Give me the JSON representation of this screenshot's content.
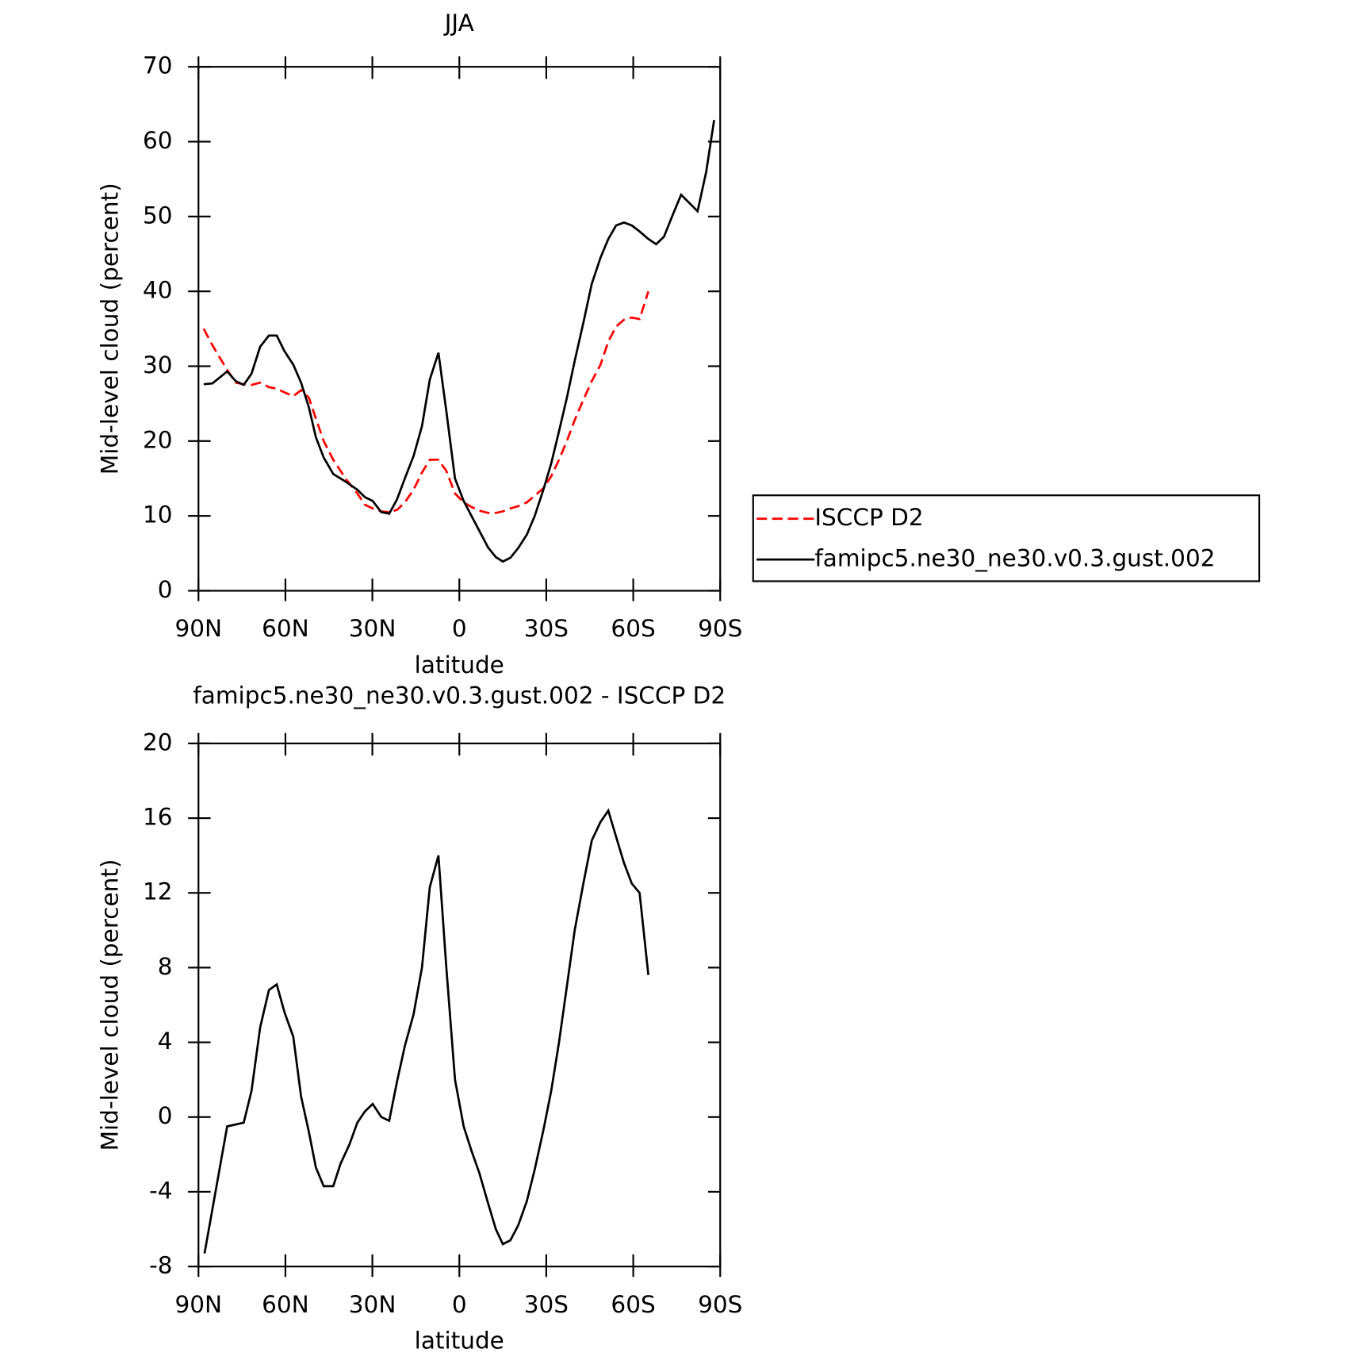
{
  "chart_data": [
    {
      "type": "line",
      "title": "JJA",
      "xlabel": "latitude",
      "ylabel": "Mid-level cloud (percent)",
      "x": [
        88.2,
        85.2,
        80.1,
        77.1,
        74.4,
        71.7,
        68.7,
        65.7,
        63.0,
        60.3,
        57.3,
        54.6,
        51.9,
        49.5,
        46.8,
        43.5,
        38.9,
        35.2,
        32.6,
        29.9,
        26.9,
        24.2,
        21.5,
        18.8,
        15.8,
        12.9,
        10.2,
        7.2,
        4.5,
        1.5,
        -1.5,
        -4.2,
        -6.9,
        -9.9,
        -12.6,
        -15.0,
        -17.6,
        -20.3,
        -23.3,
        -26.0,
        -29.0,
        -31.7,
        -34.4,
        -37.1,
        -39.8,
        -42.8,
        -45.7,
        -48.7,
        -51.4,
        -54.1,
        -56.8,
        -59.5,
        -62.2,
        -65.2,
        -67.9,
        -70.6,
        -73.6,
        -76.5,
        -82.2,
        -85.2,
        -87.9
      ],
      "series": [
        {
          "name": "ISCCP D2",
          "color": "#ff0000",
          "dash": true,
          "values": [
            35,
            32.8,
            29.5,
            27.8,
            27.6,
            27.5,
            27.8,
            27.2,
            27,
            26.5,
            26,
            26.8,
            25.8,
            23,
            20,
            17.5,
            14.8,
            13,
            11.5,
            11,
            10.6,
            10.5,
            10.8,
            11.8,
            13.5,
            15.8,
            17.5,
            17.5,
            16,
            13,
            11.8,
            11.2,
            10.7,
            10.4,
            10.4,
            10.6,
            11,
            11.3,
            11.8,
            12.7,
            13.7,
            15.3,
            17.5,
            20,
            22.8,
            25.5,
            28,
            30.2,
            33.3,
            35.3,
            36.2,
            36.5,
            36.3,
            40,
            null,
            null,
            null,
            null,
            null,
            null,
            null
          ]
        },
        {
          "name": "famipc5.ne30_ne30.v0.3.gust.002",
          "color": "#000000",
          "dash": false,
          "values": [
            27.6,
            27.7,
            29.3,
            28,
            27.5,
            29,
            32.6,
            34.1,
            34.1,
            32,
            30.2,
            27.8,
            24.5,
            20.5,
            17.8,
            15.6,
            14.5,
            13.5,
            12.5,
            12,
            10.5,
            10.3,
            12.2,
            15,
            18,
            22,
            28.2,
            31.8,
            24,
            15,
            12,
            10,
            8,
            5.8,
            4.5,
            3.9,
            4.4,
            5.7,
            7.5,
            10,
            13.5,
            17,
            21.3,
            25.8,
            30.7,
            35.8,
            41,
            44.5,
            47,
            48.8,
            49.2,
            48.8,
            48,
            47,
            46.3,
            47.3,
            50.2,
            52.9,
            50.7,
            56,
            62.9
          ]
        }
      ],
      "xlim": [
        90,
        -90
      ],
      "xticks": [
        {
          "value": 90,
          "label": "90N"
        },
        {
          "value": 60,
          "label": "60N"
        },
        {
          "value": 30,
          "label": "30N"
        },
        0,
        {
          "value": -30,
          "label": "30S"
        },
        {
          "value": -60,
          "label": "60S"
        },
        {
          "value": -90,
          "label": "90S"
        }
      ],
      "ylim": [
        0,
        70
      ],
      "yticks": [
        0,
        10,
        20,
        30,
        40,
        50,
        60,
        70
      ],
      "legend": "right"
    },
    {
      "type": "line",
      "title": "famipc5.ne30_ne30.v0.3.gust.002 - ISCCP D2",
      "xlabel": "latitude",
      "ylabel": "Mid-level cloud (percent)",
      "x": [
        87.9,
        80.1,
        74.4,
        71.7,
        68.7,
        65.7,
        63.0,
        60.3,
        57.3,
        54.6,
        51.9,
        49.5,
        46.8,
        43.5,
        41.0,
        38.0,
        35.2,
        32.6,
        29.9,
        26.9,
        24.2,
        21.5,
        18.8,
        15.8,
        12.9,
        10.2,
        7.2,
        4.5,
        1.5,
        -1.5,
        -4.2,
        -6.9,
        -9.9,
        -12.6,
        -15.0,
        -17.6,
        -20.3,
        -23.3,
        -26.0,
        -29.0,
        -31.7,
        -34.4,
        -37.1,
        -39.8,
        -42.8,
        -45.7,
        -48.7,
        -51.4,
        -54.1,
        -56.8,
        -59.5,
        -62.2,
        -65.2
      ],
      "series": [
        {
          "color": "#000000",
          "dash": false,
          "values": [
            -7.3,
            -0.5,
            -0.3,
            1.4,
            4.8,
            6.8,
            7.1,
            5.6,
            4.3,
            1.1,
            -0.8,
            -2.7,
            -3.7,
            -3.7,
            -2.5,
            -1.5,
            -0.3,
            0.3,
            0.7,
            0,
            -0.2,
            1.9,
            3.8,
            5.5,
            8,
            12.3,
            14,
            8,
            2,
            -0.5,
            -1.8,
            -3,
            -4.6,
            -6,
            -6.8,
            -6.6,
            -5.8,
            -4.5,
            -2.8,
            -0.7,
            1.4,
            4,
            7,
            10,
            12.5,
            14.8,
            15.8,
            16.4,
            15,
            13.6,
            12.5,
            12,
            7.6
          ]
        }
      ],
      "xlim": [
        90,
        -90
      ],
      "xticks": [
        {
          "value": 90,
          "label": "90N"
        },
        {
          "value": 60,
          "label": "60N"
        },
        {
          "value": 30,
          "label": "30N"
        },
        0,
        {
          "value": -30,
          "label": "30S"
        },
        {
          "value": -60,
          "label": "60S"
        },
        {
          "value": -90,
          "label": "90S"
        }
      ],
      "ylim": [
        -8,
        20
      ],
      "yticks": [
        -8,
        -4,
        0,
        4,
        8,
        12,
        16,
        20
      ]
    }
  ]
}
